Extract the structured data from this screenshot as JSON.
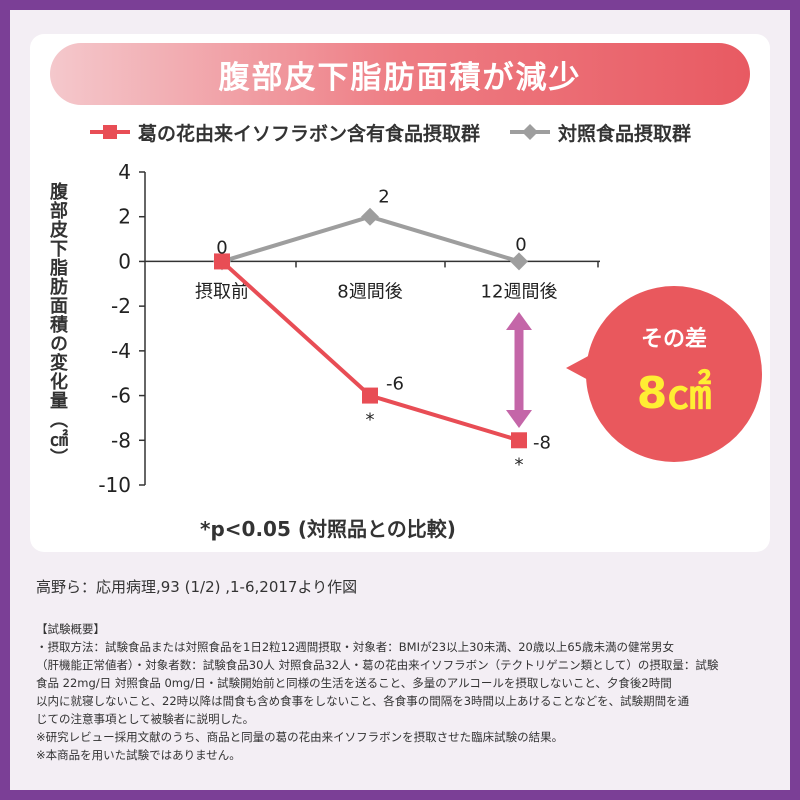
{
  "title": "腹部皮下脂肪面積が減少",
  "legend": {
    "series_a": "葛の花由来イソフラボン含有食品摂取群",
    "series_b": "対照食品摂取群"
  },
  "badge": {
    "label": "その差",
    "value": "8㎠"
  },
  "note": "*p<0.05 (対照品との比較)",
  "citation": "高野ら：応用病理,93 (1/2) ,1-6,2017より作図",
  "details": {
    "heading": "【試験概要】",
    "lines": [
      "・摂取方法：試験食品または対照食品を1日2粒12週間摂取・対象者：BMIが23以上30未満、20歳以上65歳未満の健常男女",
      "（肝機能正常値者）・対象者数：試験食品30人 対照食品32人・葛の花由来イソフラボン（テクトリゲニン類として）の摂取量：試験",
      "食品 22mg/日 対照食品 0mg/日・試験開始前と同様の生活を送ること、多量のアルコールを摂取しないこと、夕食後2時間",
      "以内に就寝しないこと、22時以降は間食も含め食事をしないこと、各食事の間隔を3時間以上あけることなどを、試験期間を通",
      "じての注意事項として被験者に説明した。"
    ],
    "notes": [
      "※研究レビュー採用文献のうち、商品と同量の葛の花由来イソフラボンを摂取させた臨床試験の結果。",
      "※本商品を用いた試験ではありません。"
    ]
  },
  "colors": {
    "frame": "#7b3f96",
    "series_a": "#e84d55",
    "series_b": "#9e9e9e",
    "badge": "#e9585d",
    "badge_value": "#ffee33",
    "arrow": "#c466a8"
  },
  "chart_data": {
    "type": "line",
    "categories": [
      "摂取前",
      "8週間後",
      "12週間後"
    ],
    "ylabel": "腹部皮下脂肪面積の変化量（㎠）",
    "ylim": [
      -10,
      4
    ],
    "yticks": [
      4,
      2,
      0,
      -2,
      -4,
      -6,
      -8,
      -10
    ],
    "grid": false,
    "legend_position": "top",
    "series": [
      {
        "name": "葛の花由来イソフラボン含有食品摂取群",
        "values": [
          0,
          -6,
          -8
        ],
        "labels": [
          "0",
          "-6",
          "-8"
        ],
        "significance": [
          "",
          "*",
          "*"
        ],
        "marker": "square",
        "color": "#e84d55"
      },
      {
        "name": "対照食品摂取群",
        "values": [
          0,
          2,
          0
        ],
        "labels": [
          "0",
          "2",
          "0"
        ],
        "marker": "diamond",
        "color": "#9e9e9e"
      }
    ]
  }
}
